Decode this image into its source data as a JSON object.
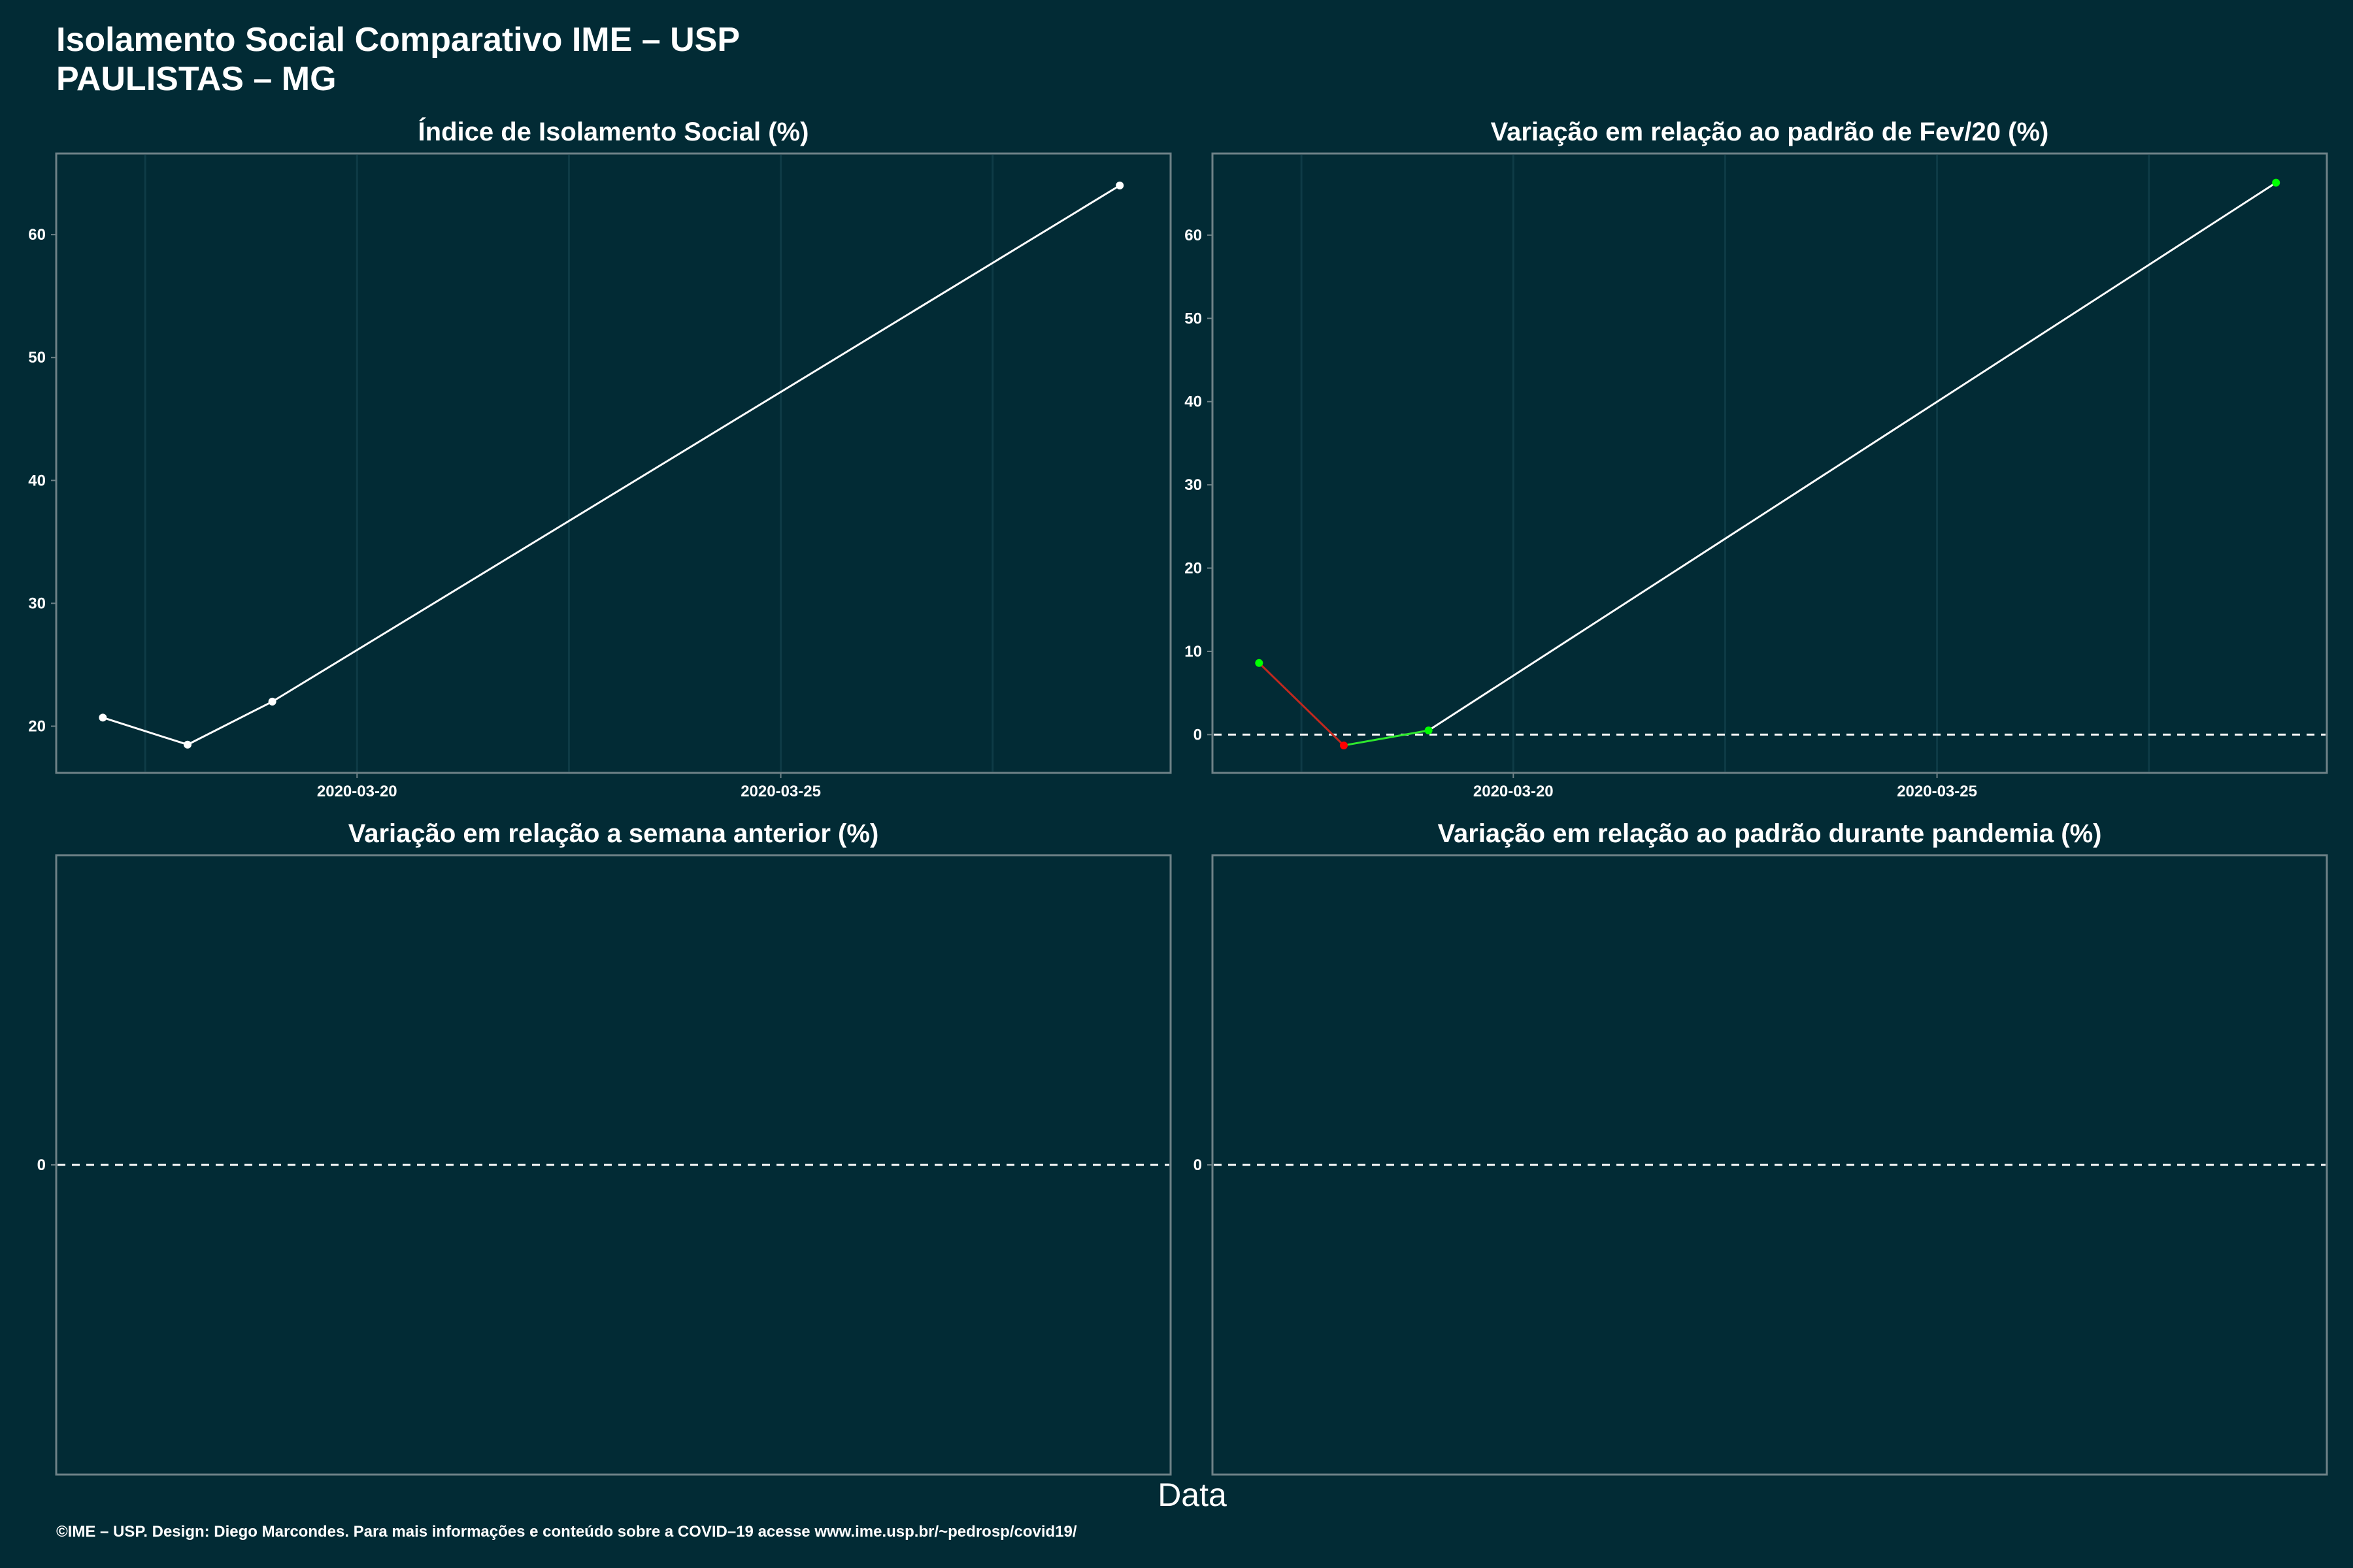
{
  "header": {
    "title_line1": "Isolamento Social Comparativo IME – USP",
    "title_line2": "PAULISTAS – MG"
  },
  "xlabel": "Data",
  "caption": "©IME – USP. Design: Diego Marcondes. Para mais informações e conteúdo sobre a COVID–19 acesse www.ime.usp.br/~pedrosp/covid19/",
  "colors": {
    "background": "#022b35",
    "line": "#ffffff",
    "increase": "#00ff00",
    "decrease": "#ff0000",
    "segment_decrease": "#c0281e",
    "segment_increase": "#2ee82e",
    "panel_border": "#6e8287",
    "gridline": "#0e3b46"
  },
  "chart_data": [
    {
      "type": "line",
      "title": "Índice de Isolamento Social (%)",
      "x": [
        "2020-03-17",
        "2020-03-18",
        "2020-03-19",
        "2020-03-29"
      ],
      "y": [
        20.7,
        18.5,
        22.0,
        64.0
      ],
      "xlim": [
        "2020-03-16.45",
        "2020-03-29.6"
      ],
      "ylim": [
        16.2,
        66.6
      ],
      "yticks": [
        20,
        30,
        40,
        50,
        60
      ],
      "xticks": [
        "2020-03-20",
        "2020-03-25"
      ],
      "zero_line": false,
      "grid": true
    },
    {
      "type": "line",
      "title": "Variação em relação ao padrão de Fev/20 (%)",
      "x": [
        "2020-03-17",
        "2020-03-18",
        "2020-03-19",
        "2020-03-29"
      ],
      "y": [
        8.6,
        -1.3,
        0.5,
        66.3
      ],
      "xlim": [
        "2020-03-16.45",
        "2020-03-29.6"
      ],
      "ylim": [
        -4.6,
        69.8
      ],
      "yticks": [
        0,
        10,
        20,
        30,
        40,
        50,
        60
      ],
      "xticks": [
        "2020-03-20",
        "2020-03-25"
      ],
      "zero_line": true,
      "grid": true
    },
    {
      "type": "line",
      "title": "Variação em relação a semana anterior (%)",
      "x": [],
      "y": [],
      "ylim": [
        -1,
        1
      ],
      "yticks": [
        0
      ],
      "xticks": [],
      "zero_line": true,
      "grid": false
    },
    {
      "type": "line",
      "title": "Variação em relação ao padrão durante pandemia (%)",
      "x": [],
      "y": [],
      "ylim": [
        -1,
        1
      ],
      "yticks": [
        0
      ],
      "xticks": [],
      "zero_line": true,
      "grid": false
    }
  ]
}
